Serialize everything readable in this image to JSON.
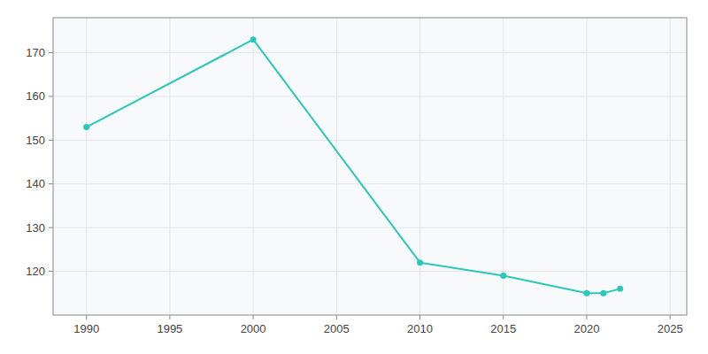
{
  "chart_data": {
    "type": "line",
    "x": [
      1990,
      2000,
      2010,
      2015,
      2020,
      2021,
      2022
    ],
    "values": [
      153,
      173,
      122,
      119,
      115,
      115,
      116
    ],
    "color": "#2ac8b8",
    "marker": "circle",
    "xlim": [
      1988,
      2026
    ],
    "ylim": [
      110,
      178
    ],
    "xticks": [
      1990,
      1995,
      2000,
      2005,
      2010,
      2015,
      2020,
      2025
    ],
    "yticks": [
      120,
      130,
      140,
      150,
      160,
      170
    ],
    "grid": true
  }
}
